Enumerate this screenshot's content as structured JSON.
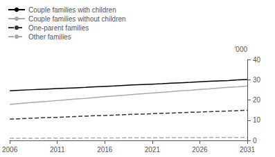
{
  "chart_data": {
    "type": "line",
    "ylabel": "'000",
    "x": [
      2006,
      2007,
      2008,
      2009,
      2010,
      2011,
      2012,
      2013,
      2014,
      2015,
      2016,
      2017,
      2018,
      2019,
      2020,
      2021,
      2022,
      2023,
      2024,
      2025,
      2026,
      2027,
      2028,
      2029,
      2030,
      2031
    ],
    "xlim": [
      2006,
      2031
    ],
    "xticks": [
      2006,
      2011,
      2016,
      2021,
      2026,
      2031
    ],
    "ylim": [
      0,
      40
    ],
    "yticks": [
      0,
      10,
      20,
      30,
      40
    ],
    "grid": false,
    "legend": "upper left",
    "series": [
      {
        "name": "Couple families with children",
        "color": "#000000",
        "line_style": "solid",
        "values": [
          24.5,
          24.8,
          25.0,
          25.2,
          25.4,
          25.6,
          25.8,
          26.0,
          26.2,
          26.5,
          26.7,
          26.9,
          27.2,
          27.4,
          27.6,
          27.8,
          28.0,
          28.3,
          28.5,
          28.7,
          29.0,
          29.2,
          29.4,
          29.6,
          29.9,
          30.1
        ]
      },
      {
        "name": "Couple families without children",
        "color": "#aaaaaa",
        "line_style": "solid",
        "values": [
          17.8,
          18.2,
          18.6,
          19.0,
          19.3,
          19.7,
          20.1,
          20.5,
          20.8,
          21.2,
          21.6,
          22.0,
          22.3,
          22.7,
          23.1,
          23.4,
          23.8,
          24.1,
          24.5,
          24.8,
          25.2,
          25.5,
          25.9,
          26.2,
          26.5,
          26.9
        ]
      },
      {
        "name": "One-parent families",
        "color": "#333333",
        "line_style": "dashed",
        "values": [
          10.5,
          10.7,
          10.9,
          11.1,
          11.3,
          11.4,
          11.6,
          11.8,
          12.0,
          12.2,
          12.3,
          12.5,
          12.7,
          12.9,
          13.0,
          13.2,
          13.4,
          13.5,
          13.7,
          13.9,
          14.0,
          14.2,
          14.4,
          14.5,
          14.7,
          14.9
        ]
      },
      {
        "name": "Other families",
        "color": "#aaaaaa",
        "line_style": "dashed",
        "values": [
          1.0,
          1.02,
          1.04,
          1.06,
          1.08,
          1.1,
          1.12,
          1.14,
          1.16,
          1.18,
          1.2,
          1.22,
          1.24,
          1.26,
          1.28,
          1.3,
          1.32,
          1.34,
          1.36,
          1.38,
          1.4,
          1.42,
          1.44,
          1.46,
          1.48,
          1.5
        ]
      }
    ]
  }
}
